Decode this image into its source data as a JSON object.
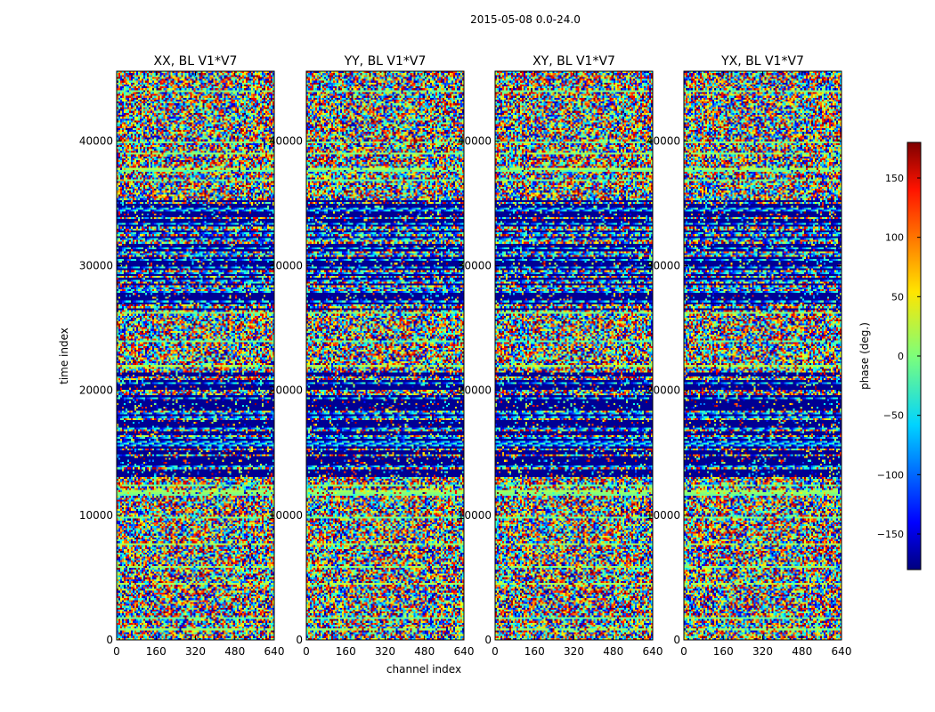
{
  "figure": {
    "suptitle": "2015-05-08 0.0-24.0"
  },
  "chart_data": {
    "type": "heatmap",
    "title": "2015-05-08 0.0-24.0",
    "xlabel": "channel index",
    "ylabel": "time index",
    "xlim": [
      0,
      640
    ],
    "ylim": [
      0,
      45600
    ],
    "x_ticks": [
      0,
      160,
      320,
      480,
      640
    ],
    "y_ticks": [
      0,
      10000,
      20000,
      30000,
      40000
    ],
    "panels": [
      {
        "title": "XX, BL V1*V7",
        "polarization": "XX",
        "baseline": "V1*V7"
      },
      {
        "title": "YY, BL V1*V7",
        "polarization": "YY",
        "baseline": "V1*V7"
      },
      {
        "title": "XY, BL V1*V7",
        "polarization": "XY",
        "baseline": "V1*V7"
      },
      {
        "title": "YX, BL V1*V7",
        "polarization": "YX",
        "baseline": "V1*V7"
      }
    ],
    "colorbar": {
      "label": "phase (deg.)",
      "range": [
        -180,
        180
      ],
      "ticks": [
        -150,
        -100,
        -50,
        0,
        50,
        100,
        150
      ],
      "tick_labels": [
        "−150",
        "−100",
        "−50",
        "0",
        "50",
        "100",
        "150"
      ],
      "colormap": "jet"
    },
    "value_description": "visibility phase in degrees per time index and channel index"
  }
}
